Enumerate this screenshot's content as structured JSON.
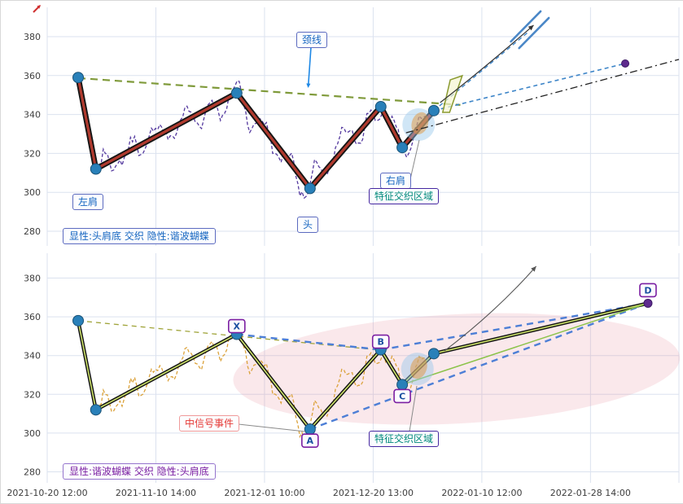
{
  "figure": {
    "bg": "#ffffff",
    "grid_color": "#dbe2ef",
    "axis_text_color": "#3d3d3d",
    "accent_blue": "#2980b9",
    "accent_purple": "#5e2b8e"
  },
  "chart_data": [
    {
      "type": "line",
      "pattern": "head-and-shoulders-bottom",
      "labels": {
        "neckline": "颈线",
        "left_shoulder": "左肩",
        "head": "头",
        "right_shoulder": "右肩",
        "feature_zone": "特征交织区域",
        "caption": "显性:头肩底 交织 隐性:谐波蝴蝶"
      },
      "yticks": [
        280,
        300,
        320,
        340,
        360,
        380
      ],
      "ylim": [
        272,
        395
      ],
      "xticks": [
        "2021-10-20 12:00",
        "2021-11-10 14:00",
        "2021-12-01 10:00",
        "2021-12-20 13:00",
        "2022-01-10 12:00",
        "2022-01-28 14:00"
      ],
      "pivots": [
        {
          "t": 0.049,
          "value": 359
        },
        {
          "t": 0.077,
          "value": 312
        },
        {
          "t": 0.3,
          "value": 351
        },
        {
          "t": 0.416,
          "value": 302
        },
        {
          "t": 0.528,
          "value": 344
        },
        {
          "t": 0.562,
          "value": 323
        },
        {
          "t": 0.612,
          "value": 342
        }
      ],
      "price_color": "#53389e",
      "line_core_color": "#b03a2e",
      "neckline_pts": [
        [
          0.049,
          358.7
        ],
        [
          0.654,
          344.9
        ]
      ],
      "projection_dashed": [
        [
          0.612,
          342
        ],
        [
          0.915,
          366.2
        ]
      ],
      "projection_dashed2": [
        [
          0.612,
          342
        ],
        [
          0.762,
          382.5
        ]
      ],
      "dash_dot": [
        [
          0.568,
          330.6
        ],
        [
          1.0,
          368.3
        ]
      ],
      "target_dot": [
        0.915,
        366.2
      ],
      "channel": [
        [
          [
            0.734,
            377.5
          ],
          [
            0.781,
            393.0
          ]
        ],
        [
          [
            0.747,
            374.1
          ],
          [
            0.794,
            389.6
          ]
        ]
      ],
      "arrow_curve": [
        [
          0.622,
          346.1
        ],
        [
          0.693,
          364.1
        ],
        [
          0.77,
          385.9
        ]
      ],
      "pennant": [
        [
          0.626,
          341.1
        ],
        [
          0.638,
          357.8
        ],
        [
          0.657,
          359.9
        ],
        [
          0.637,
          341.1
        ]
      ],
      "halo": {
        "t": 0.588,
        "value": 334.8
      }
    },
    {
      "type": "line",
      "pattern": "harmonic-butterfly",
      "labels": {
        "signal_event": "中信号事件",
        "feature_zone": "特征交织区域",
        "caption": "显性:谐波蝴蝶 交织 隐性:头肩底"
      },
      "yticks": [
        280,
        300,
        320,
        340,
        360,
        380
      ],
      "ylim": [
        274,
        393
      ],
      "pivots": [
        {
          "t": 0.049,
          "value": 358
        },
        {
          "t": 0.077,
          "value": 312
        },
        {
          "t": 0.3,
          "value": 351,
          "label": "X"
        },
        {
          "t": 0.416,
          "value": 302,
          "label": "A"
        },
        {
          "t": 0.528,
          "value": 343,
          "label": "B"
        },
        {
          "t": 0.562,
          "value": 325,
          "label": "C"
        },
        {
          "t": 0.612,
          "value": 341
        },
        {
          "t": 0.951,
          "value": 367,
          "label": "D"
        }
      ],
      "price_color": "#dba23a",
      "line_core_color": "#cde26a",
      "pattern_lines": [
        [
          "X",
          "B"
        ],
        [
          "B",
          "D"
        ],
        [
          "A",
          "D"
        ]
      ],
      "olive_dashed": [
        [
          0.049,
          358
        ],
        [
          0.528,
          342.8
        ]
      ],
      "green_line": [
        [
          0.562,
          325
        ],
        [
          0.951,
          367
        ]
      ],
      "ellipse": {
        "t": 0.648,
        "value": 333.1,
        "rx_t": 0.354,
        "ry_v": 28.2,
        "rot": -3
      },
      "halo": {
        "t": 0.586,
        "value": 333.1
      },
      "arrow_curve": [
        [
          0.629,
          342.4
        ],
        [
          0.713,
          363.4
        ],
        [
          0.774,
          386.1
        ]
      ]
    }
  ]
}
